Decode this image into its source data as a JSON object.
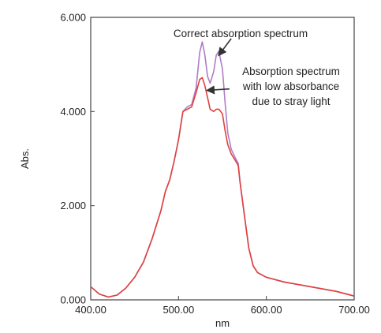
{
  "chart_data": {
    "type": "line",
    "xlabel": "nm",
    "ylabel": "Abs.",
    "xlim": [
      400,
      700
    ],
    "ylim": [
      0,
      6
    ],
    "x_ticks": [
      400,
      500,
      600,
      700
    ],
    "x_tick_labels": [
      "400.00",
      "500.00",
      "600.00",
      "700.00"
    ],
    "y_ticks": [
      0,
      2,
      4,
      6
    ],
    "y_tick_labels": [
      "0.000",
      "2.000",
      "4.000",
      "6.000"
    ],
    "grid": false,
    "legend": "none",
    "series": [
      {
        "color": "#b07cc6",
        "x": [
          400,
          410,
          420,
          430,
          440,
          450,
          460,
          470,
          480,
          485,
          490,
          495,
          500,
          505,
          510,
          515,
          520,
          524,
          527,
          530,
          533,
          536,
          540,
          543,
          546,
          550,
          553,
          556,
          560,
          565,
          568,
          570,
          575,
          580,
          585,
          590,
          600,
          620,
          650,
          680,
          700
        ],
        "y": [
          0.28,
          0.12,
          0.06,
          0.1,
          0.25,
          0.48,
          0.8,
          1.3,
          1.9,
          2.3,
          2.55,
          2.95,
          3.4,
          4.0,
          4.1,
          4.15,
          4.5,
          5.25,
          5.48,
          5.2,
          4.75,
          4.6,
          4.85,
          5.2,
          5.28,
          4.9,
          4.2,
          3.55,
          3.2,
          3.0,
          2.9,
          2.5,
          1.8,
          1.1,
          0.72,
          0.58,
          0.48,
          0.38,
          0.28,
          0.18,
          0.08
        ]
      },
      {
        "color": "#e0413c",
        "x": [
          400,
          410,
          420,
          430,
          440,
          450,
          460,
          470,
          480,
          485,
          490,
          495,
          500,
          505,
          510,
          515,
          520,
          524,
          527,
          530,
          533,
          536,
          540,
          543,
          546,
          550,
          553,
          556,
          560,
          565,
          568,
          570,
          575,
          580,
          585,
          590,
          600,
          620,
          650,
          680,
          700
        ],
        "y": [
          0.28,
          0.12,
          0.06,
          0.1,
          0.25,
          0.48,
          0.8,
          1.3,
          1.9,
          2.3,
          2.55,
          2.95,
          3.4,
          4.0,
          4.05,
          4.1,
          4.4,
          4.68,
          4.72,
          4.55,
          4.3,
          4.05,
          4.0,
          4.05,
          4.05,
          3.95,
          3.6,
          3.3,
          3.1,
          2.95,
          2.85,
          2.5,
          1.8,
          1.1,
          0.72,
          0.58,
          0.48,
          0.38,
          0.28,
          0.18,
          0.08
        ]
      }
    ],
    "annotations": [
      {
        "lines": [
          "Correct absorption spectrum"
        ],
        "arrow_from": [
          560,
          5.55
        ],
        "arrow_to": [
          546,
          5.2
        ]
      },
      {
        "lines": [
          "Absorption spectrum",
          "with low absorbance",
          "due to stray light"
        ],
        "arrow_from": [
          558,
          4.48
        ],
        "arrow_to": [
          533,
          4.45
        ]
      }
    ]
  }
}
